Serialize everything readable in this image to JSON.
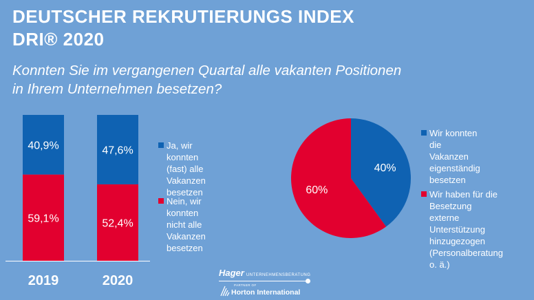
{
  "header": {
    "title_line1": "DEUTSCHER REKRUTIERUNGS INDEX",
    "title_line2": "DRI® 2020",
    "question_line1": "Konnten Sie im vergangenen Quartal alle vakanten Positionen",
    "question_line2": "in Ihrem Unternehmen besetzen?"
  },
  "colors": {
    "background": "#6FA1D6",
    "blue": "#0F62B2",
    "red": "#E2002F",
    "text": "#FFFFFF"
  },
  "chart_data": [
    {
      "type": "bar",
      "stacked": true,
      "categories": [
        "2019",
        "2020"
      ],
      "series": [
        {
          "name": "Ja, wir konnten (fast) alle Vakanzen besetzen",
          "values": [
            40.9,
            47.6
          ],
          "labels": [
            "40,9%",
            "47,6%"
          ],
          "color": "#0F62B2"
        },
        {
          "name": "Nein, wir konnten nicht alle Vakanzen besetzen",
          "values": [
            59.1,
            52.4
          ],
          "labels": [
            "59,1%",
            "52,4%"
          ],
          "color": "#E2002F"
        }
      ],
      "ylim": [
        0,
        100
      ],
      "legend": {
        "position": "right",
        "items": [
          {
            "line1": "Ja, wir konnten",
            "line2": "(fast) alle Vakanzen",
            "line3": "besetzen"
          },
          {
            "line1": "Nein, wir konnten",
            "line2": "nicht alle Vakanzen",
            "line3": "besetzen"
          }
        ]
      }
    },
    {
      "type": "pie",
      "slices": [
        {
          "name": "Wir konnten die Vakanzen eigenständig besetzen",
          "value": 40,
          "label": "40%",
          "color": "#0F62B2"
        },
        {
          "name": "Wir haben für die Besetzung externe Unterstützung hinzugezogen (Personalberatung o. ä.)",
          "value": 60,
          "label": "60%",
          "color": "#E2002F"
        }
      ],
      "legend": {
        "position": "right",
        "items": [
          {
            "lines": [
              "Wir konnten die",
              "Vakanzen",
              "eigenständig",
              "besetzen"
            ]
          },
          {
            "lines": [
              "Wir haben für die",
              "Besetzung externe",
              "Unterstützung",
              "hinzugezogen",
              "(Personalberatung",
              "o. ä.)"
            ]
          }
        ]
      }
    }
  ],
  "footer": {
    "brand": "Hager",
    "brand_sub": "UNTERNEHMENSBERATUNG",
    "partner_text": "PARTNER OF",
    "partner_name": "Horton International"
  }
}
